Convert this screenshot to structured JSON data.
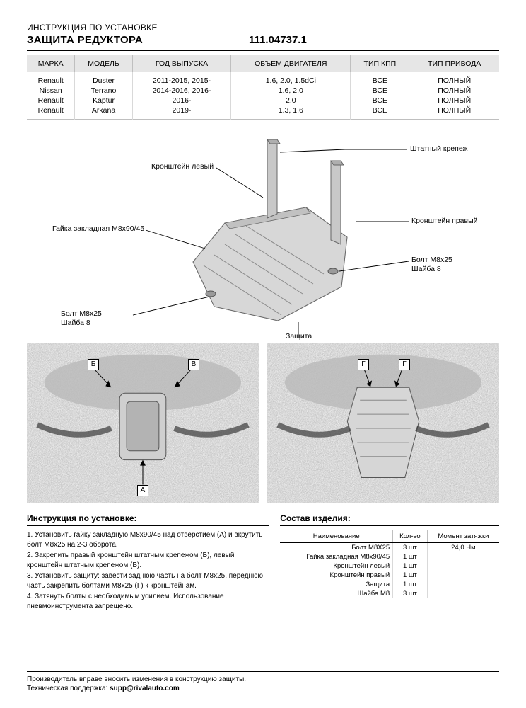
{
  "header": {
    "subtitle": "ИНСТРУКЦИЯ ПО УСТАНОВКЕ",
    "title": "ЗАЩИТА РЕДУКТОРА",
    "part_number": "111.04737.1"
  },
  "spec_table": {
    "columns": [
      "МАРКА",
      "МОДЕЛЬ",
      "ГОД ВЫПУСКА",
      "ОБЪЕМ ДВИГАТЕЛЯ",
      "ТИП КПП",
      "ТИП ПРИВОДА"
    ],
    "rows": [
      [
        "Renault",
        "Duster",
        "2011-2015, 2015-",
        "1.6, 2.0, 1.5dCi",
        "ВСЕ",
        "ПОЛНЫЙ"
      ],
      [
        "Nissan",
        "Terrano",
        "2014-2016, 2016-",
        "1.6, 2.0",
        "ВСЕ",
        "ПОЛНЫЙ"
      ],
      [
        "Renault",
        "Kaptur",
        "2016-",
        "2.0",
        "ВСЕ",
        "ПОЛНЫЙ"
      ],
      [
        "Renault",
        "Arkana",
        "2019-",
        "1.3, 1.6",
        "ВСЕ",
        "ПОЛНЫЙ"
      ]
    ]
  },
  "diagram_labels": {
    "fastener_std": "Штатный крепеж",
    "bracket_left": "Кронштейн левый",
    "nut": "Гайка закладная М8х90/45",
    "bracket_right": "Кронштейн правый",
    "bolt1a": "Болт М8х25",
    "bolt1b": "Шайба 8",
    "bolt2a": "Болт М8х25",
    "bolt2b": "Шайба 8",
    "protection": "Защита"
  },
  "install_section": {
    "heading": "Инструкция по установке:",
    "steps": [
      "1. Установить гайку закладную М8х90/45 над отверстием (А) и вкрутить болт М8х25 на 2-3 оборота.",
      "2. Закрепить правый кронштейн штатным крепежом (Б), левый кронштейн штатным крепежом (В).",
      "3. Установить защиту: завести заднюю часть на болт М8х25, переднюю часть закрепить болтами М8х25 (Г) к кронштейнам.",
      "4. Затянуть болты с необходимым усилием. Использование пневмоинструмента запрещено."
    ]
  },
  "bom_section": {
    "heading": "Состав изделия:",
    "columns": [
      "Наименование",
      "Кол-во",
      "Момент затяжки"
    ],
    "rows": [
      [
        "Болт М8Х25",
        "3 шт",
        "24,0 Нм"
      ],
      [
        "Гайка закладная М8х90/45",
        "1 шт",
        ""
      ],
      [
        "Кронштейн левый",
        "1 шт",
        ""
      ],
      [
        "Кронштейн правый",
        "1 шт",
        ""
      ],
      [
        "Защита",
        "1 шт",
        ""
      ],
      [
        "Шайба М8",
        "3 шт",
        ""
      ]
    ]
  },
  "footer": {
    "line1": "Производитель вправе вносить изменения в конструкцию защиты.",
    "line2_prefix": "Техническая поддержка: ",
    "email": "supp@rivalauto.com"
  },
  "callouts": {
    "a": "А",
    "b": "Б",
    "v": "В",
    "g": "Г"
  }
}
